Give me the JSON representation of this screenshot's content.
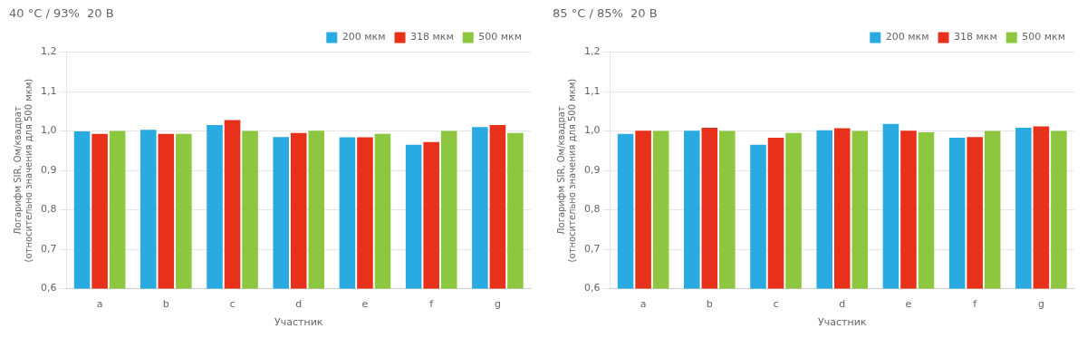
{
  "chart_data": [
    {
      "type": "bar",
      "title": "40 °C / 93%  20 В",
      "categories": [
        "a",
        "b",
        "c",
        "d",
        "e",
        "f",
        "g"
      ],
      "series": [
        {
          "name": "200 мкм",
          "color": "#29ABE2",
          "values": [
            0.999,
            1.003,
            1.015,
            0.985,
            0.984,
            0.965,
            1.01
          ]
        },
        {
          "name": "318 мкм",
          "color": "#E8311A",
          "values": [
            0.993,
            0.993,
            1.028,
            0.995,
            0.984,
            0.972,
            1.015
          ]
        },
        {
          "name": "500 мкм",
          "color": "#8DC63F",
          "values": [
            1.0,
            0.993,
            1.0,
            1.001,
            0.993,
            1.0,
            0.995
          ]
        }
      ],
      "xlabel": "Участник",
      "ylabel": "Логарифм SIR, Ом/квадрат\n(относительно значения для 500 мкм)",
      "ylim": [
        0.6,
        1.2
      ],
      "yticks": [
        {
          "value": 0.6,
          "label": "0,6"
        },
        {
          "value": 0.7,
          "label": "0,7"
        },
        {
          "value": 0.8,
          "label": "0,8"
        },
        {
          "value": 0.9,
          "label": "0,9"
        },
        {
          "value": 1.0,
          "label": "1,0"
        },
        {
          "value": 1.1,
          "label": "1,1"
        },
        {
          "value": 1.2,
          "label": "1,2"
        }
      ],
      "grid": true,
      "legend": "upper right"
    },
    {
      "type": "bar",
      "title": "85 °C / 85%  20 В",
      "categories": [
        "a",
        "b",
        "c",
        "d",
        "e",
        "f",
        "g"
      ],
      "series": [
        {
          "name": "200 мкм",
          "color": "#29ABE2",
          "values": [
            0.993,
            1.001,
            0.965,
            1.002,
            1.018,
            0.983,
            1.008
          ]
        },
        {
          "name": "318 мкм",
          "color": "#E8311A",
          "values": [
            1.001,
            1.008,
            0.983,
            1.007,
            1.001,
            0.985,
            1.012
          ]
        },
        {
          "name": "500 мкм",
          "color": "#8DC63F",
          "values": [
            1.0,
            1.0,
            0.995,
            1.0,
            0.997,
            1.0,
            1.0
          ]
        }
      ],
      "xlabel": "Участник",
      "ylabel": "Логарифм SIR, Ом/квадрат\n(относительно значения для 500 мкм)",
      "ylim": [
        0.6,
        1.2
      ],
      "yticks": [
        {
          "value": 0.6,
          "label": "0,6"
        },
        {
          "value": 0.7,
          "label": "0,7"
        },
        {
          "value": 0.8,
          "label": "0,8"
        },
        {
          "value": 0.9,
          "label": "0,9"
        },
        {
          "value": 1.0,
          "label": "1,0"
        },
        {
          "value": 1.1,
          "label": "1,1"
        },
        {
          "value": 1.2,
          "label": "1,2"
        }
      ],
      "grid": true,
      "legend": "upper right"
    }
  ]
}
